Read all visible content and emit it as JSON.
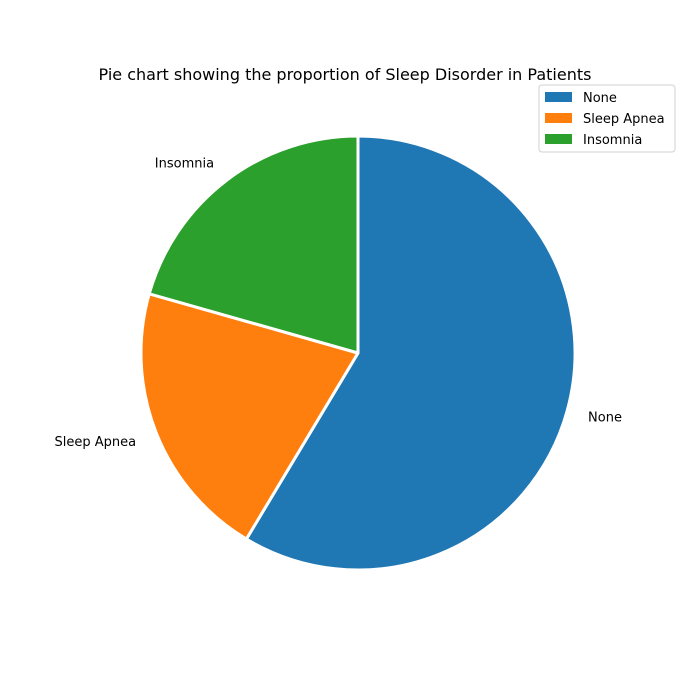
{
  "chart_data": {
    "type": "pie",
    "title": "Pie chart showing the proportion of Sleep Disorder in Patients",
    "categories": [
      "None",
      "Sleep Apnea",
      "Insomnia"
    ],
    "values": [
      58.6,
      20.8,
      20.6
    ],
    "colors": [
      "#1f77b4",
      "#ff7f0e",
      "#2ca02c"
    ],
    "start_angle_deg": 90,
    "direction": "clockwise",
    "slice_edge_color": "#ffffff",
    "legend": {
      "placement": "top-right",
      "entries": [
        "None",
        "Sleep Apnea",
        "Insomnia"
      ]
    }
  }
}
